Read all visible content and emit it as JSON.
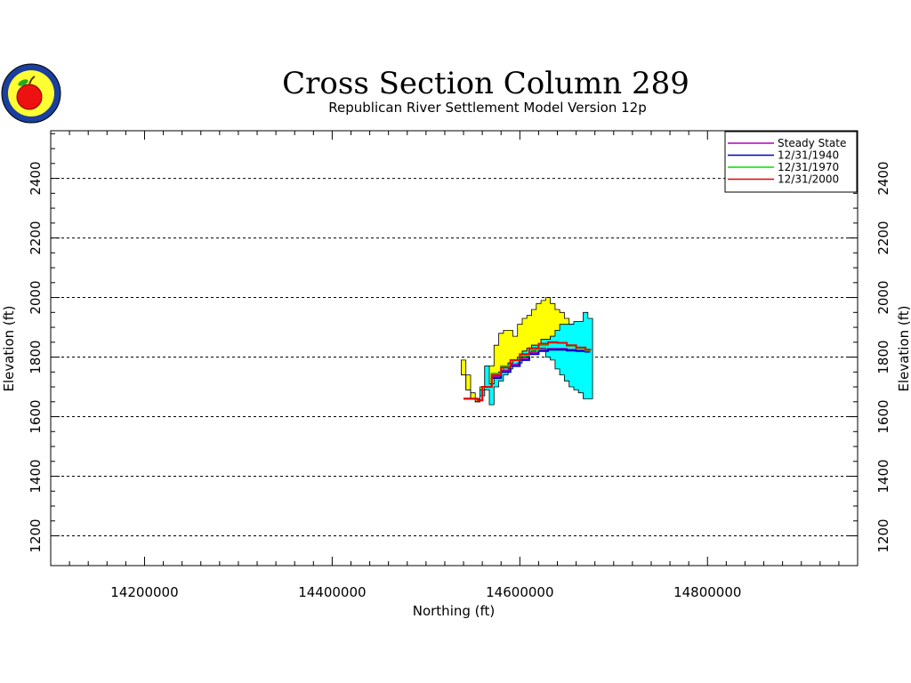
{
  "chart_data": {
    "type": "area",
    "title": "Cross Section Column 289",
    "subtitle": "Republican River Settlement Model Version 12p",
    "xlabel": "Northing (ft)",
    "ylabel": "Elevation (ft)",
    "xlim": [
      14100000,
      14960000
    ],
    "ylim": [
      1100,
      2560
    ],
    "x_ticks": [
      14200000,
      14400000,
      14600000,
      14800000
    ],
    "x_tick_labels": [
      "14200000",
      "14400000",
      "14600000",
      "14800000"
    ],
    "y_ticks": [
      1200,
      1400,
      1600,
      1800,
      2000,
      2200,
      2400
    ],
    "y_tick_labels": [
      "1200",
      "1400",
      "1600",
      "1800",
      "2000",
      "2200",
      "2400"
    ],
    "grid": "horizontal dashed",
    "legend_position": "top-right",
    "layer_colors": {
      "upper": "#ffff00",
      "lower": "#00ffff"
    },
    "layers": [
      {
        "fill": "#ffff00",
        "x": [
          14540000,
          14545000,
          14550000,
          14555000,
          14560000,
          14565000,
          14570000,
          14575000,
          14580000,
          14585000,
          14590000,
          14595000,
          14600000,
          14605000,
          14610000,
          14615000,
          14620000,
          14625000,
          14630000,
          14635000,
          14640000,
          14645000,
          14650000,
          14655000,
          14660000,
          14665000,
          14670000,
          14675000
        ],
        "top": [
          1790,
          1740,
          1680,
          1660,
          1700,
          1770,
          1770,
          1840,
          1880,
          1890,
          1890,
          1870,
          1910,
          1930,
          1940,
          1960,
          1980,
          1990,
          2000,
          1980,
          1960,
          1950,
          1930,
          1910,
          1900,
          1900,
          1880,
          1870
        ],
        "bottom": [
          1740,
          1690,
          1660,
          1650,
          1690,
          1700,
          1710,
          1730,
          1750,
          1770,
          1780,
          1790,
          1800,
          1820,
          1830,
          1840,
          1840,
          1860,
          1860,
          1870,
          1860,
          1850,
          1840,
          1840,
          1830,
          1830,
          1820,
          1820
        ]
      },
      {
        "fill": "#00ffff",
        "x": [
          14540000,
          14545000,
          14550000,
          14555000,
          14560000,
          14565000,
          14570000,
          14575000,
          14580000,
          14585000,
          14590000,
          14595000,
          14600000,
          14605000,
          14610000,
          14615000,
          14620000,
          14625000,
          14630000,
          14635000,
          14640000,
          14645000,
          14650000,
          14655000,
          14660000,
          14665000,
          14670000,
          14675000
        ],
        "top": [
          1740,
          1690,
          1660,
          1650,
          1690,
          1770,
          1710,
          1730,
          1750,
          1770,
          1780,
          1790,
          1800,
          1820,
          1830,
          1840,
          1840,
          1860,
          1860,
          1870,
          1890,
          1910,
          1910,
          1910,
          1920,
          1920,
          1950,
          1930
        ],
        "bottom": [
          1740,
          1690,
          1660,
          1650,
          1670,
          1690,
          1640,
          1700,
          1720,
          1740,
          1760,
          1770,
          1780,
          1800,
          1810,
          1820,
          1830,
          1830,
          1800,
          1790,
          1760,
          1740,
          1720,
          1700,
          1690,
          1680,
          1660,
          1660
        ]
      }
    ],
    "series": [
      {
        "name": "Steady State",
        "color": "#b400b4",
        "x": [
          14540000,
          14555000,
          14560000,
          14570000,
          14580000,
          14590000,
          14600000,
          14610000,
          14620000,
          14630000,
          14640000,
          14650000,
          14660000,
          14670000,
          14675000
        ],
        "y": [
          1660,
          1655,
          1700,
          1735,
          1755,
          1775,
          1795,
          1815,
          1825,
          1828,
          1828,
          1825,
          1822,
          1820,
          1820
        ]
      },
      {
        "name": "12/31/1940",
        "color": "#0000cc",
        "x": [
          14540000,
          14555000,
          14560000,
          14570000,
          14580000,
          14590000,
          14600000,
          14610000,
          14620000,
          14630000,
          14640000,
          14650000,
          14660000,
          14670000,
          14675000
        ],
        "y": [
          1660,
          1655,
          1700,
          1730,
          1750,
          1770,
          1790,
          1810,
          1820,
          1825,
          1825,
          1822,
          1820,
          1818,
          1818
        ]
      },
      {
        "name": "12/31/1970",
        "color": "#00dd00",
        "x": [
          14540000,
          14555000,
          14560000,
          14570000,
          14580000,
          14590000,
          14600000,
          14610000,
          14620000,
          14630000,
          14640000,
          14650000,
          14660000,
          14670000,
          14675000
        ],
        "y": [
          1660,
          1655,
          1700,
          1745,
          1770,
          1790,
          1805,
          1825,
          1840,
          1848,
          1848,
          1838,
          1830,
          1822,
          1822
        ]
      },
      {
        "name": "12/31/2000",
        "color": "#ee0000",
        "x": [
          14540000,
          14555000,
          14560000,
          14570000,
          14580000,
          14590000,
          14600000,
          14610000,
          14620000,
          14630000,
          14640000,
          14650000,
          14660000,
          14670000,
          14675000
        ],
        "y": [
          1660,
          1655,
          1700,
          1740,
          1765,
          1790,
          1810,
          1830,
          1845,
          1850,
          1848,
          1840,
          1832,
          1825,
          1822
        ]
      }
    ]
  }
}
